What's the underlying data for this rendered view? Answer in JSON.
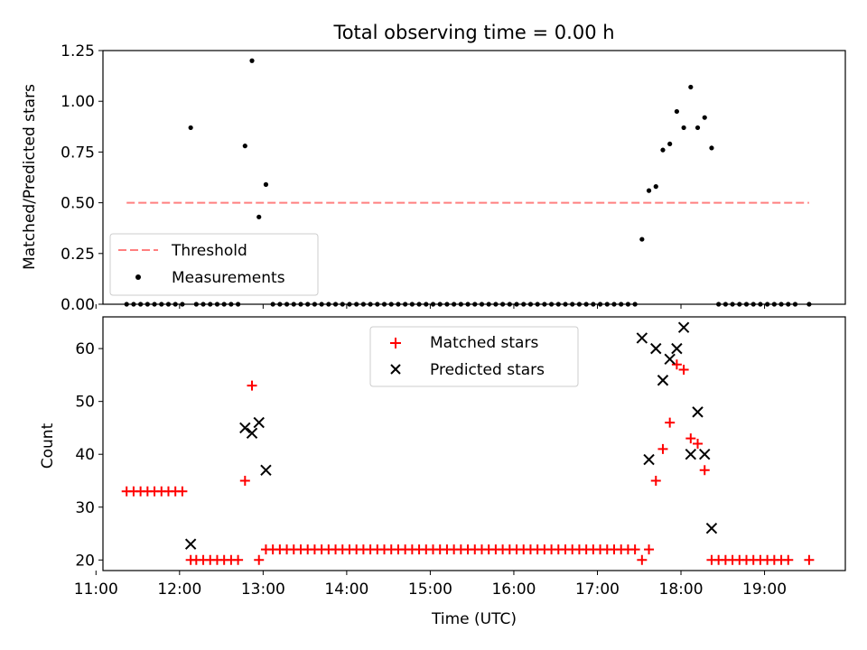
{
  "colors": {
    "threshold": "#ff7f7f",
    "measurements": "#000000",
    "matched": "#ff0000",
    "predicted": "#000000"
  },
  "chart_data": [
    {
      "type": "scatter",
      "title": "Total observing time = 0.00 h",
      "xlabel": "",
      "ylabel": "Matched/Predicted stars",
      "xlim": [
        "11:05",
        "19:58"
      ],
      "ylim": [
        0,
        1.25
      ],
      "yticks": [
        0.0,
        0.25,
        0.5,
        0.75,
        1.0,
        1.25
      ],
      "ytick_labels": [
        "0.00",
        "0.25",
        "0.50",
        "0.75",
        "1.00",
        "1.25"
      ],
      "xtick_labels_shown": false,
      "legend": {
        "placement": "lower-left",
        "entries": [
          "Threshold",
          "Measurements"
        ]
      },
      "threshold": {
        "name": "Threshold",
        "x": [
          "11:22",
          "19:32"
        ],
        "y": 0.5
      },
      "measurements": {
        "name": "Measurements",
        "points": [
          [
            "12:08",
            0.87
          ],
          [
            "12:47",
            0.78
          ],
          [
            "12:52",
            1.2
          ],
          [
            "12:57",
            0.43
          ],
          [
            "13:02",
            0.59
          ],
          [
            "17:32",
            0.32
          ],
          [
            "17:37",
            0.56
          ],
          [
            "17:42",
            0.58
          ],
          [
            "17:47",
            0.76
          ],
          [
            "17:52",
            0.79
          ],
          [
            "17:57",
            0.95
          ],
          [
            "18:02",
            0.87
          ],
          [
            "18:07",
            1.07
          ],
          [
            "18:12",
            0.87
          ],
          [
            "18:17",
            0.92
          ],
          [
            "18:22",
            0.77
          ],
          [
            "19:32",
            0.0
          ]
        ],
        "zero_runs": [
          {
            "start": "11:22",
            "end": "12:02",
            "step_min": 5,
            "y": 0
          },
          {
            "start": "12:12",
            "end": "12:42",
            "step_min": 5,
            "y": 0
          },
          {
            "start": "13:07",
            "end": "17:27",
            "step_min": 5,
            "y": 0
          },
          {
            "start": "18:27",
            "end": "19:22",
            "step_min": 5,
            "y": 0
          }
        ]
      }
    },
    {
      "type": "scatter",
      "title": "",
      "xlabel": "Time (UTC)",
      "ylabel": "Count",
      "xlim": [
        "11:05",
        "19:58"
      ],
      "ylim": [
        18,
        66
      ],
      "yticks": [
        20,
        30,
        40,
        50,
        60
      ],
      "xtick_labels": [
        "11:00",
        "12:00",
        "13:00",
        "14:00",
        "15:00",
        "16:00",
        "17:00",
        "18:00",
        "19:00"
      ],
      "legend": {
        "placement": "top-center",
        "entries": [
          "Matched stars",
          "Predicted stars"
        ]
      },
      "matched_stars": {
        "name": "Matched stars",
        "points": [
          [
            "12:08",
            20
          ],
          [
            "12:47",
            35
          ],
          [
            "12:52",
            53
          ],
          [
            "12:57",
            20
          ],
          [
            "17:32",
            20
          ],
          [
            "17:37",
            22
          ],
          [
            "17:42",
            35
          ],
          [
            "17:47",
            41
          ],
          [
            "17:52",
            46
          ],
          [
            "17:57",
            57
          ],
          [
            "18:02",
            56
          ],
          [
            "18:07",
            43
          ],
          [
            "18:12",
            42
          ],
          [
            "18:17",
            37
          ],
          [
            "19:32",
            20
          ]
        ],
        "runs": [
          {
            "start": "11:22",
            "end": "12:02",
            "step_min": 5,
            "y": 33
          },
          {
            "start": "12:12",
            "end": "12:42",
            "step_min": 5,
            "y": 20
          },
          {
            "start": "13:02",
            "end": "17:27",
            "step_min": 5,
            "y": 22
          },
          {
            "start": "18:22",
            "end": "19:17",
            "step_min": 5,
            "y": 20
          }
        ]
      },
      "predicted_stars": {
        "name": "Predicted stars",
        "points": [
          [
            "12:08",
            23
          ],
          [
            "12:47",
            45
          ],
          [
            "12:52",
            44
          ],
          [
            "12:57",
            46
          ],
          [
            "13:02",
            37
          ],
          [
            "17:32",
            62
          ],
          [
            "17:37",
            39
          ],
          [
            "17:42",
            60
          ],
          [
            "17:47",
            54
          ],
          [
            "17:52",
            58
          ],
          [
            "17:57",
            60
          ],
          [
            "18:02",
            64
          ],
          [
            "18:07",
            40
          ],
          [
            "18:12",
            48
          ],
          [
            "18:17",
            40
          ],
          [
            "18:22",
            26
          ]
        ]
      }
    }
  ]
}
